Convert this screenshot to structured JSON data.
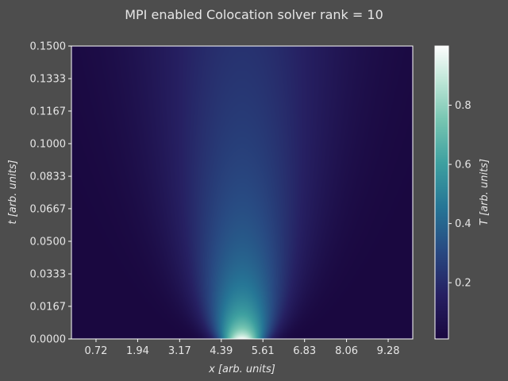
{
  "chart_data": {
    "type": "heatmap",
    "title": "MPI enabled Colocation solver rank = 10",
    "xlabel": "x [arb. units]",
    "ylabel": "t [arb. units]",
    "colorbar_label": "T [arb. units]",
    "xlim": [
      0,
      10
    ],
    "ylim": [
      0,
      0.15
    ],
    "x_ticks": [
      "0.72",
      "1.94",
      "3.17",
      "4.39",
      "5.61",
      "6.83",
      "8.06",
      "9.28"
    ],
    "x_tick_values": [
      0.72,
      1.94,
      3.17,
      4.39,
      5.61,
      6.83,
      8.06,
      9.28
    ],
    "y_ticks": [
      "0.0000",
      "0.0167",
      "0.0333",
      "0.0500",
      "0.0667",
      "0.0833",
      "0.1000",
      "0.1167",
      "0.1333",
      "0.1500"
    ],
    "y_tick_values": [
      0,
      0.0167,
      0.0333,
      0.05,
      0.0667,
      0.0833,
      0.1,
      0.1167,
      0.1333,
      0.15
    ],
    "colorbar_ticks": [
      "0.2",
      "0.4",
      "0.6",
      "0.8"
    ],
    "colorbar_tick_values": [
      0.2,
      0.4,
      0.6,
      0.8
    ],
    "colorbar_range": [
      0.01,
      1.0
    ],
    "colormap": "cubehelix-like (dark navy → teal → white)",
    "field": {
      "description_for_render": "Gaussian pulse centered at x=5 diffusing in t",
      "peak_value": 1.0,
      "center_x": 5.0
    }
  },
  "colors": {
    "background": "#4d4d4d",
    "text": "#e6e6e6",
    "axis": "#ffffff"
  }
}
